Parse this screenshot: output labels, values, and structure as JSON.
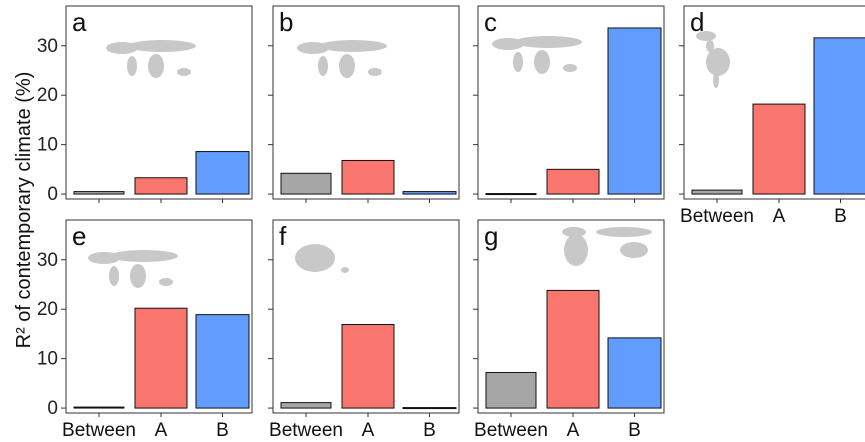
{
  "ylabel": "R² of contemporary climate (%)",
  "colors": {
    "Between": "#a6a6a6",
    "A": "#f8766d",
    "B": "#619cff",
    "land": "#c8c8c8"
  },
  "chart_data": [
    {
      "type": "bar",
      "panel": "a",
      "categories": [
        "Between",
        "A",
        "B"
      ],
      "values": [
        0.5,
        3.3,
        8.6
      ],
      "ylim": [
        -1,
        34
      ],
      "yticks": [
        0,
        10,
        20,
        30
      ],
      "show_xticklabels": false,
      "show_yticklabels": true,
      "map": "world"
    },
    {
      "type": "bar",
      "panel": "b",
      "categories": [
        "Between",
        "A",
        "B"
      ],
      "values": [
        4.2,
        6.8,
        0.5
      ],
      "ylim": [
        -1,
        34
      ],
      "yticks": [
        0,
        10,
        20,
        30
      ],
      "show_xticklabels": false,
      "show_yticklabels": false,
      "map": "world"
    },
    {
      "type": "bar",
      "panel": "c",
      "categories": [
        "Between",
        "A",
        "B"
      ],
      "values": [
        0.1,
        5.0,
        33.6
      ],
      "ylim": [
        -1,
        34
      ],
      "yticks": [
        0,
        10,
        20,
        30
      ],
      "show_xticklabels": false,
      "show_yticklabels": false,
      "map": "world"
    },
    {
      "type": "bar",
      "panel": "d",
      "categories": [
        "Between",
        "A",
        "B"
      ],
      "values": [
        0.8,
        18.2,
        31.6
      ],
      "ylim": [
        -1,
        34
      ],
      "yticks": [
        0,
        10,
        20,
        30
      ],
      "show_xticklabels": true,
      "show_yticklabels": false,
      "map": "americas"
    },
    {
      "type": "bar",
      "panel": "e",
      "categories": [
        "Between",
        "A",
        "B"
      ],
      "values": [
        0.2,
        20.2,
        18.9
      ],
      "ylim": [
        -1,
        34
      ],
      "yticks": [
        0,
        10,
        20,
        30
      ],
      "show_xticklabels": true,
      "show_yticklabels": true,
      "map": "world"
    },
    {
      "type": "bar",
      "panel": "f",
      "categories": [
        "Between",
        "A",
        "B"
      ],
      "values": [
        1.1,
        16.9,
        0.1
      ],
      "ylim": [
        -1,
        34
      ],
      "yticks": [
        0,
        10,
        20,
        30
      ],
      "show_xticklabels": true,
      "show_yticklabels": false,
      "map": "australia"
    },
    {
      "type": "bar",
      "panel": "g",
      "categories": [
        "Between",
        "A",
        "B"
      ],
      "values": [
        7.2,
        23.8,
        14.2
      ],
      "ylim": [
        -1,
        34
      ],
      "yticks": [
        0,
        10,
        20,
        30
      ],
      "show_xticklabels": true,
      "show_yticklabels": false,
      "map": "oldworld"
    }
  ]
}
